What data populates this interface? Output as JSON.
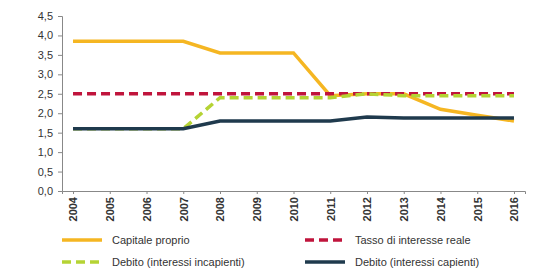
{
  "chart_data": {
    "type": "line",
    "categories": [
      "2004",
      "2005",
      "2006",
      "2007",
      "2008",
      "2009",
      "2010",
      "2011",
      "2012",
      "2013",
      "2014",
      "2015",
      "2016"
    ],
    "series": [
      {
        "name": "Capitale proprio",
        "color": "#f5b622",
        "line_style": "solid",
        "values": [
          3.85,
          3.85,
          3.85,
          3.85,
          3.55,
          3.55,
          3.55,
          2.45,
          2.5,
          2.5,
          2.1,
          1.95,
          1.8
        ]
      },
      {
        "name": "Tasso di interesse reale",
        "color": "#c0143c",
        "line_style": "dashed",
        "values": [
          2.5,
          2.5,
          2.5,
          2.5,
          2.5,
          2.5,
          2.5,
          2.5,
          2.5,
          2.5,
          2.5,
          2.5,
          2.5
        ]
      },
      {
        "name": "Debito (interessi incapienti)",
        "color": "#b5d334",
        "line_style": "dashed",
        "values": [
          1.6,
          1.6,
          1.6,
          1.6,
          2.4,
          2.4,
          2.4,
          2.4,
          2.5,
          2.45,
          2.45,
          2.45,
          2.45
        ]
      },
      {
        "name": "Debito (interessi capienti)",
        "color": "#1f3a4d",
        "line_style": "solid",
        "values": [
          1.6,
          1.6,
          1.6,
          1.6,
          1.8,
          1.8,
          1.8,
          1.8,
          1.9,
          1.88,
          1.88,
          1.88,
          1.88
        ]
      }
    ],
    "ylim": [
      0,
      4.5
    ],
    "yticks": [
      {
        "value": 0,
        "label": "0,0"
      },
      {
        "value": 0.5,
        "label": "0,5"
      },
      {
        "value": 1,
        "label": "1,0"
      },
      {
        "value": 1.5,
        "label": "1,5"
      },
      {
        "value": 2,
        "label": "2,0"
      },
      {
        "value": 2.5,
        "label": "2,5"
      },
      {
        "value": 3,
        "label": "3,0"
      },
      {
        "value": 3.5,
        "label": "3,5"
      },
      {
        "value": 4,
        "label": "4,0"
      },
      {
        "value": 4.5,
        "label": "4,5"
      }
    ],
    "grid": false,
    "legend": "bottom"
  }
}
